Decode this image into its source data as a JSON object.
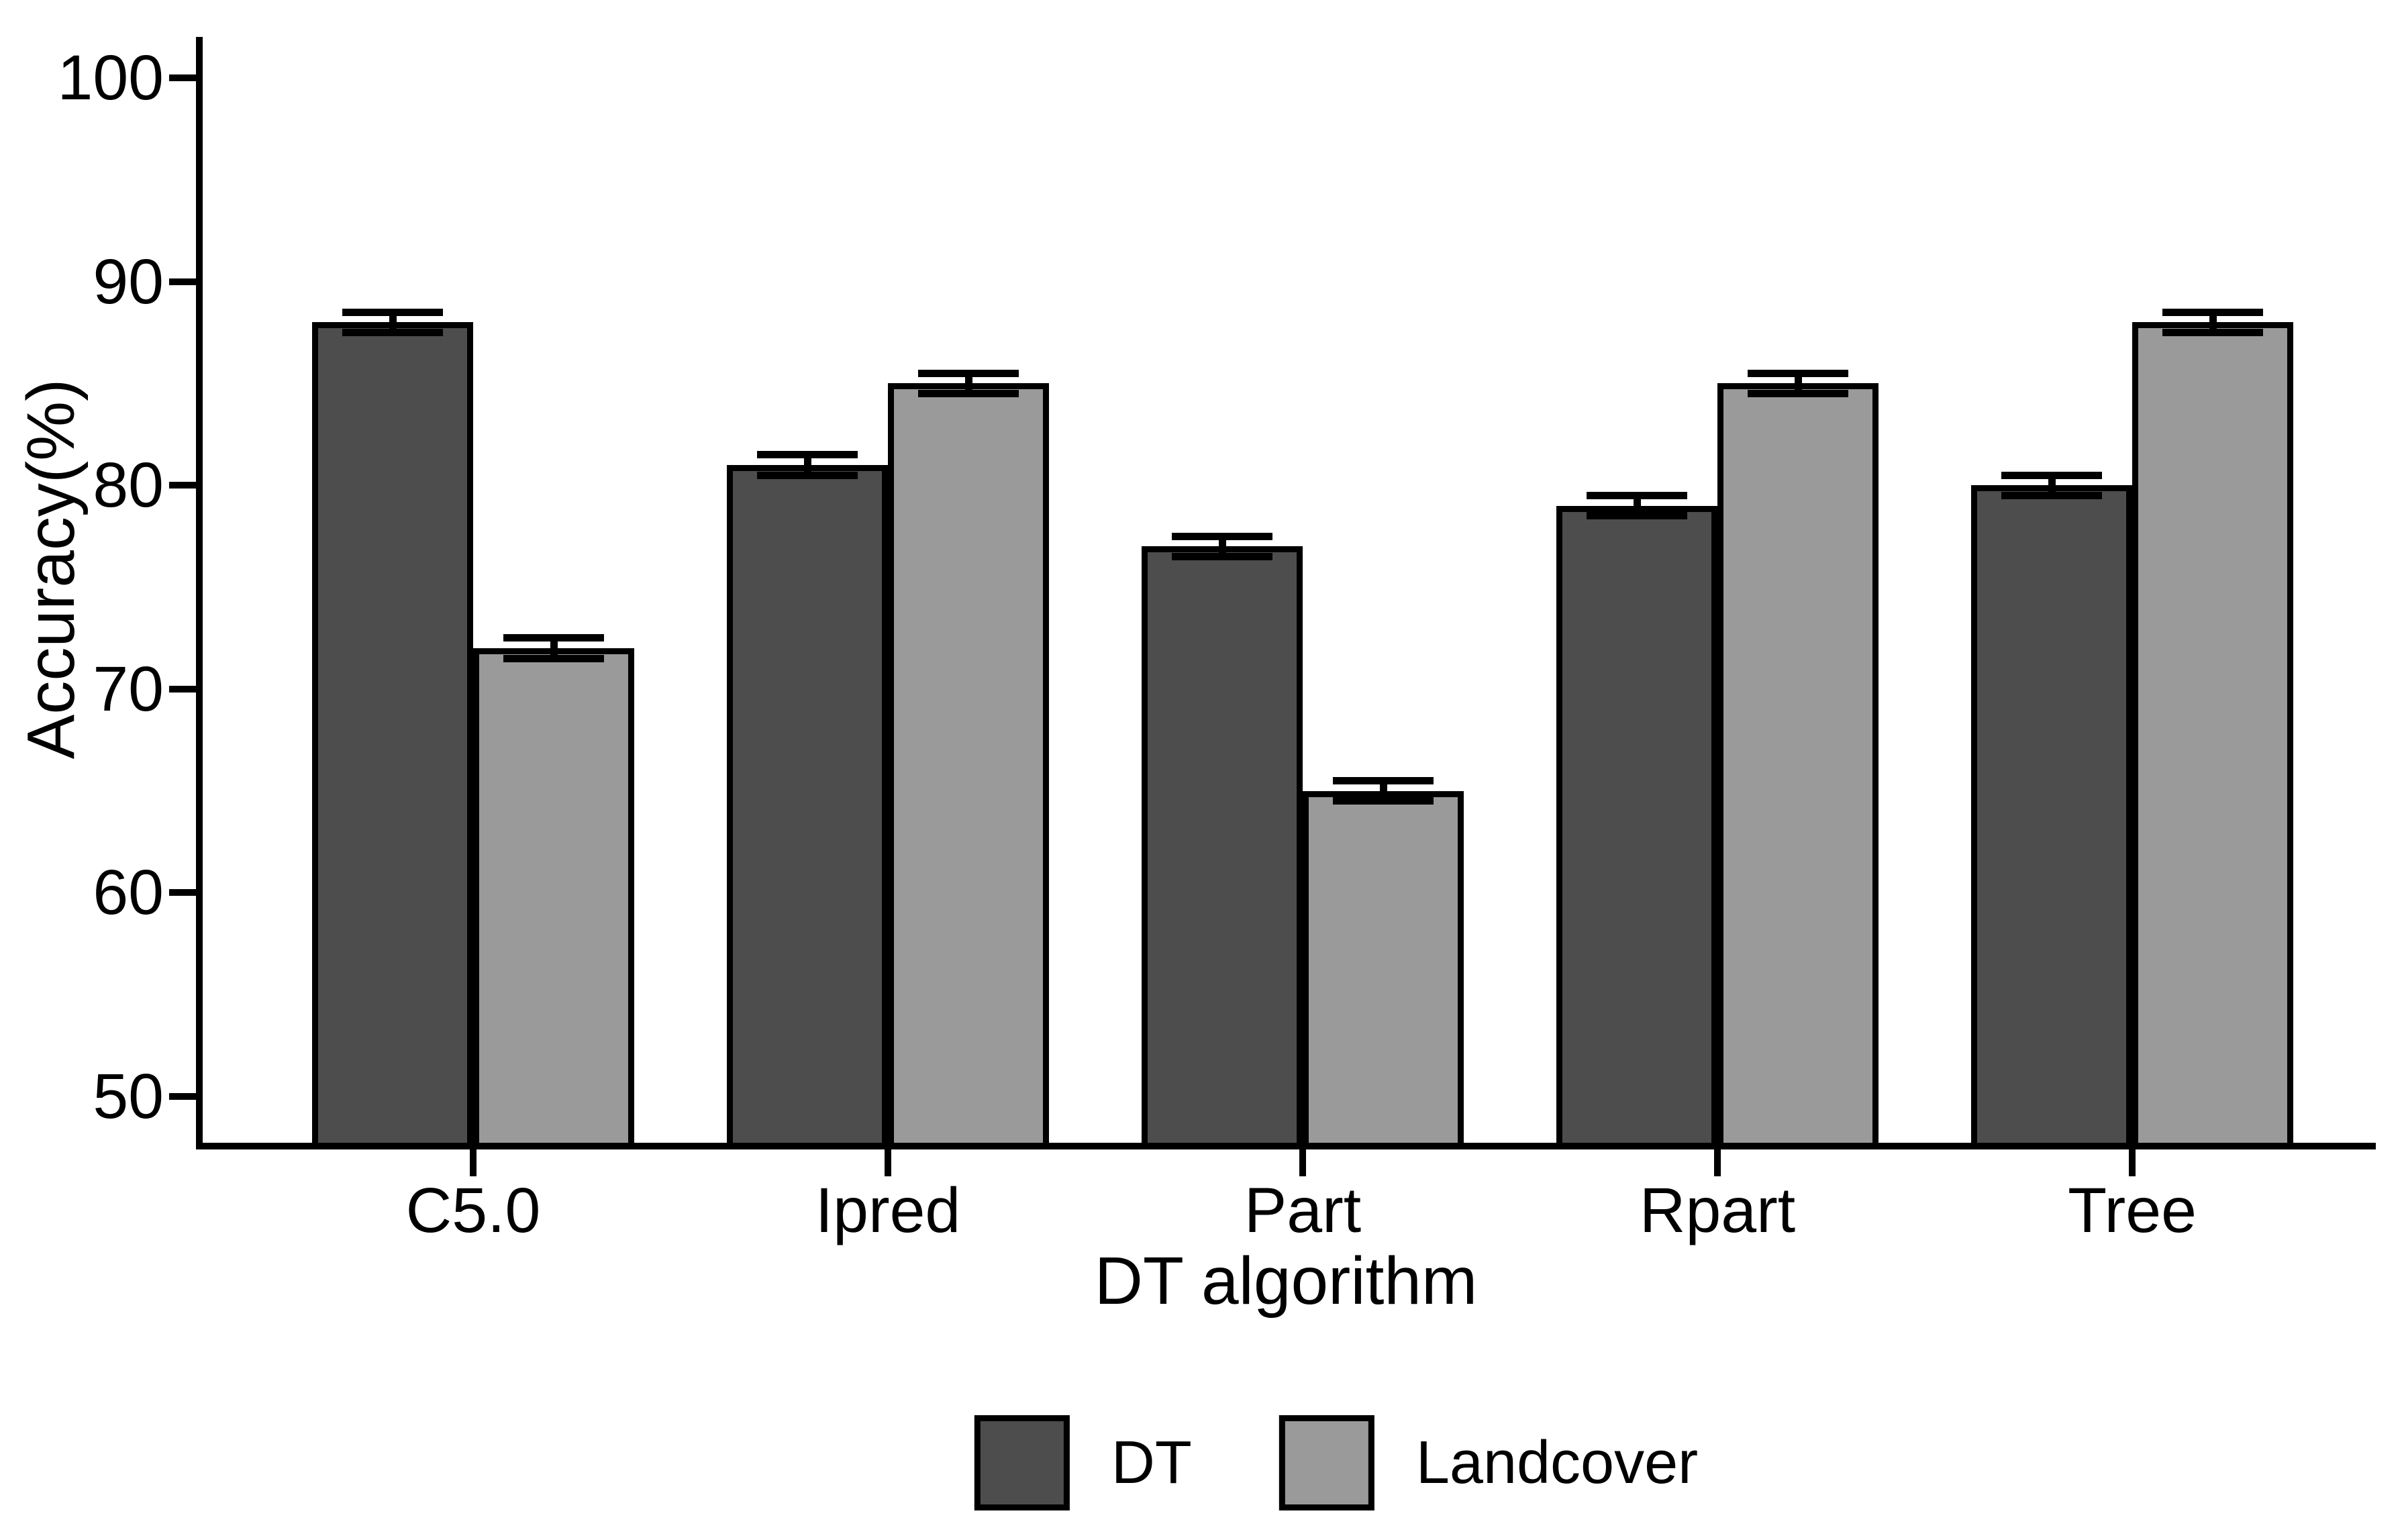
{
  "chart_data": {
    "type": "bar",
    "title": "",
    "xlabel": "DT algorithm",
    "ylabel": "Accuracy(%)",
    "categories": [
      "C5.0",
      "Ipred",
      "Part",
      "Rpart",
      "Tree"
    ],
    "series": [
      {
        "name": "DT",
        "color": "#4d4d4d",
        "values": [
          88,
          81,
          77,
          79,
          80
        ]
      },
      {
        "name": "Landcover",
        "color": "#9a9a9a",
        "values": [
          72,
          85,
          65,
          85,
          88
        ]
      }
    ],
    "error_bar": 0.5,
    "yticks": [
      50,
      60,
      70,
      80,
      90,
      100
    ],
    "ylim": [
      47.5,
      102
    ],
    "grid": false,
    "legend_position": "bottom",
    "axis_color": "#000000",
    "bar_border_color": "#000000",
    "background": "#ffffff"
  }
}
